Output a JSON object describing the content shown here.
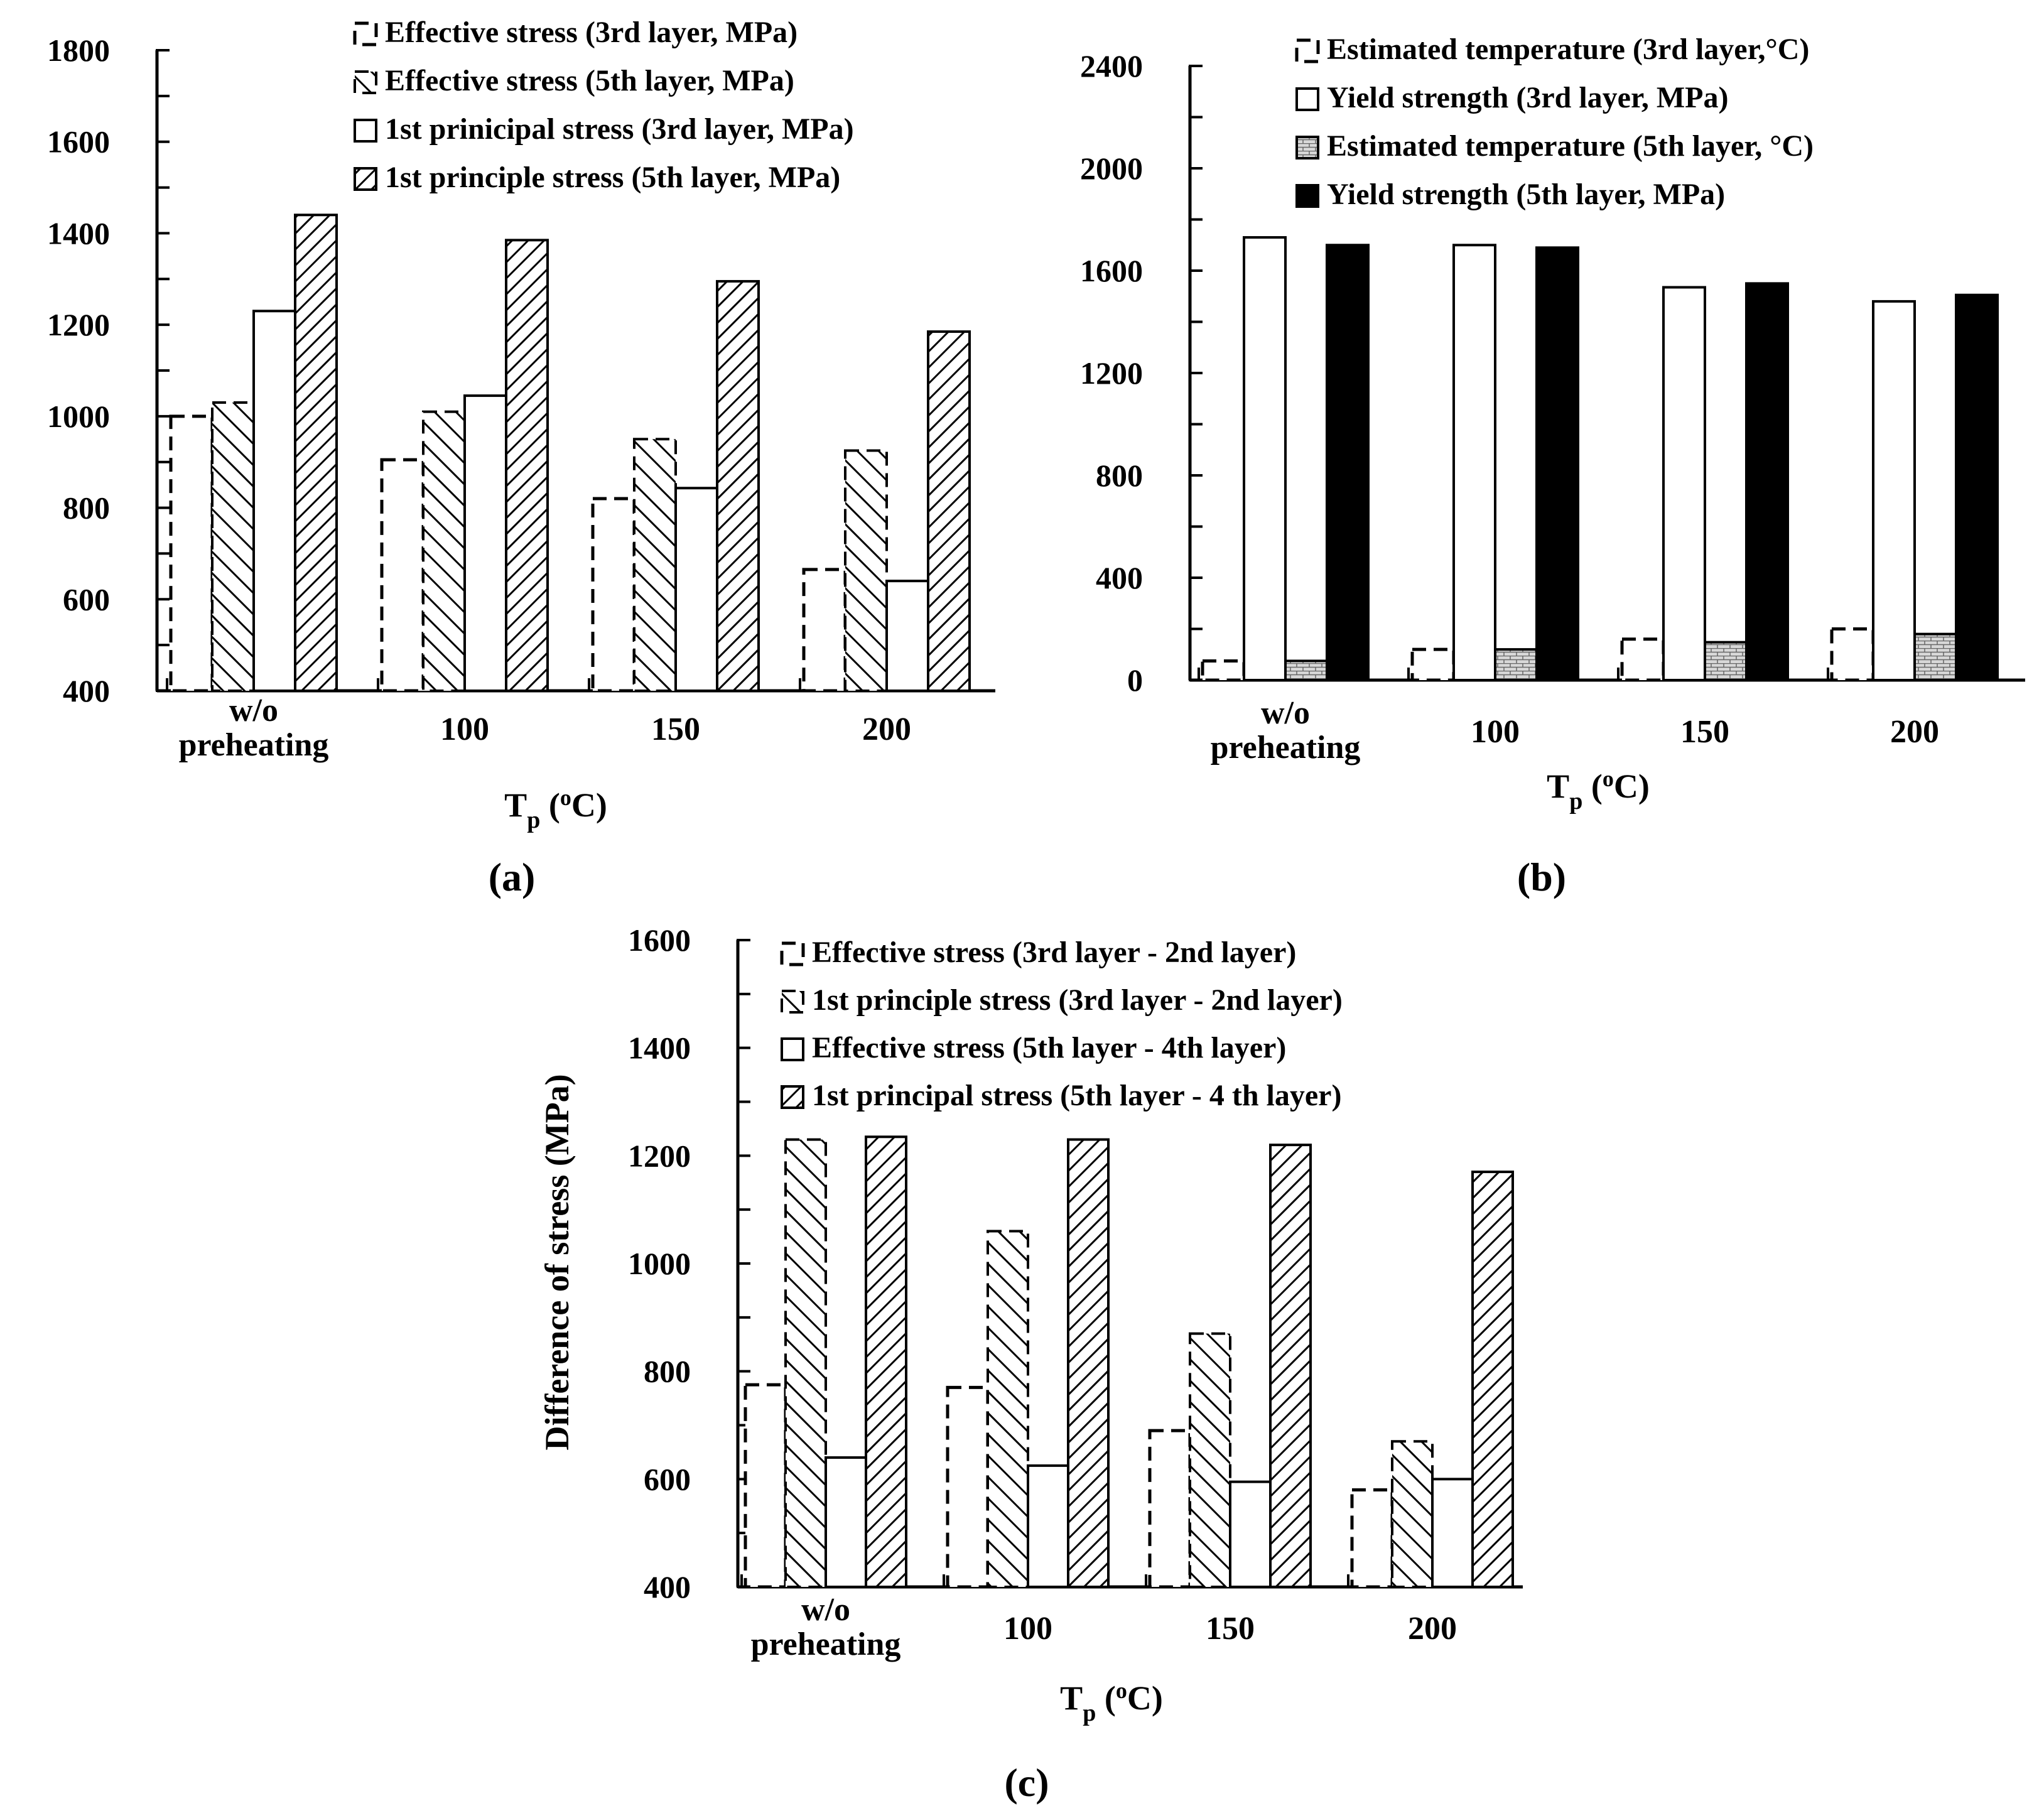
{
  "figure": {
    "panels": [
      "(a)",
      "(b)",
      "(c)"
    ]
  },
  "chart_data": [
    {
      "id": "a",
      "type": "bar",
      "panel_label": "(a)",
      "categories": [
        "w/o\npreheating",
        "100",
        "150",
        "200"
      ],
      "xlabel": "T_p (oC)",
      "xlabel_main": "T",
      "xlabel_sub": "p",
      "xlabel_rest": " (",
      "xlabel_deg": "o",
      "xlabel_unit": "C)",
      "ylabel": "",
      "ylim": [
        400,
        1800
      ],
      "yticks": [
        400,
        600,
        800,
        1000,
        1200,
        1400,
        1600,
        1800
      ],
      "legend_position": "top-right",
      "series": [
        {
          "name": "Effective stress (3rd layer, MPa)",
          "style": "dashed",
          "values": [
            1000,
            905,
            820,
            665
          ]
        },
        {
          "name": "Effective stress (5th layer, MPa)",
          "style": "hatch-dash",
          "values": [
            1030,
            1010,
            950,
            925
          ]
        },
        {
          "name": "1st prinicipal stress (3rd layer, MPa)",
          "style": "white",
          "values": [
            1230,
            1045,
            843,
            640
          ]
        },
        {
          "name": "1st principle stress (5th layer, MPa)",
          "style": "hatch-dense",
          "values": [
            1440,
            1385,
            1295,
            1185
          ]
        }
      ]
    },
    {
      "id": "b",
      "type": "bar",
      "panel_label": "(b)",
      "categories": [
        "w/o\npreheating",
        "100",
        "150",
        "200"
      ],
      "xlabel": "T_p (oC)",
      "xlabel_main": "T",
      "xlabel_sub": "p",
      "xlabel_rest": " (",
      "xlabel_deg": "o",
      "xlabel_unit": "C)",
      "ylabel": "",
      "ylim": [
        0,
        2400
      ],
      "yticks": [
        0,
        400,
        800,
        1200,
        1600,
        2000,
        2400
      ],
      "legend_position": "top-right",
      "series": [
        {
          "name": "Estimated temperature (3rd layer,°C)",
          "style": "dashed",
          "values": [
            75,
            120,
            160,
            200
          ]
        },
        {
          "name": "Yield strength (3rd layer, MPa)",
          "style": "white",
          "values": [
            1730,
            1700,
            1535,
            1480
          ]
        },
        {
          "name": "Estimated temperature (5th layer, °C)",
          "style": "brick",
          "values": [
            75,
            120,
            148,
            180
          ]
        },
        {
          "name": "Yield strength (5th layer, MPa)",
          "style": "black",
          "values": [
            1700,
            1690,
            1550,
            1505
          ]
        }
      ]
    },
    {
      "id": "c",
      "type": "bar",
      "panel_label": "(c)",
      "categories": [
        "w/o\npreheating",
        "100",
        "150",
        "200"
      ],
      "xlabel": "T_p (oC)",
      "xlabel_main": "T",
      "xlabel_sub": "p",
      "xlabel_rest": " (",
      "xlabel_deg": "o",
      "xlabel_unit": "C)",
      "ylabel": "Difference of stress (MPa)",
      "ylim": [
        400,
        1600
      ],
      "yticks": [
        400,
        600,
        800,
        1000,
        1200,
        1400,
        1600
      ],
      "legend_position": "top-right",
      "series": [
        {
          "name": "Effective stress (3rd layer - 2nd layer)",
          "style": "dashed",
          "values": [
            775,
            770,
            690,
            580
          ]
        },
        {
          "name": "1st principle stress (3rd layer - 2nd layer)",
          "style": "hatch-dash",
          "values": [
            1230,
            1060,
            870,
            670
          ]
        },
        {
          "name": "Effective stress (5th layer - 4th layer)",
          "style": "white",
          "values": [
            640,
            625,
            595,
            600
          ]
        },
        {
          "name": "1st principal stress (5th layer - 4 th layer)",
          "style": "hatch-dense",
          "values": [
            1235,
            1230,
            1220,
            1170
          ]
        }
      ]
    }
  ]
}
